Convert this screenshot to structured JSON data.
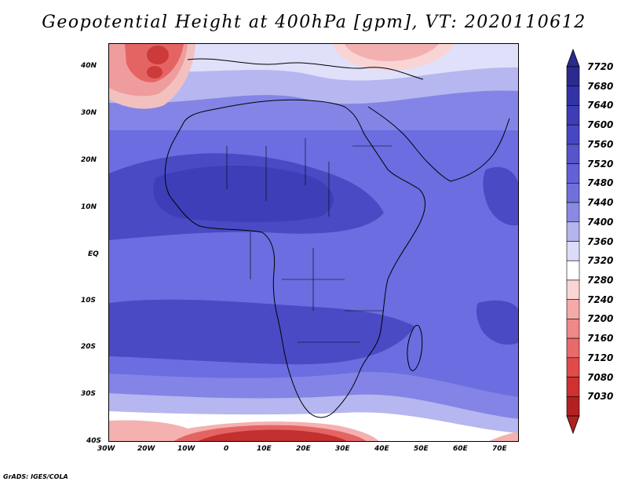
{
  "title": "Geopotential Height at 400hPa [gpm], VT: 2020110612",
  "credit": "GrADS: IGES/COLA",
  "axes": {
    "lat_labels": [
      "40N",
      "30N",
      "20N",
      "10N",
      "EQ",
      "10S",
      "20S",
      "30S",
      "40S"
    ],
    "lon_labels": [
      "30W",
      "20W",
      "10W",
      "0",
      "10E",
      "20E",
      "30E",
      "40E",
      "50E",
      "60E",
      "70E"
    ]
  },
  "colorbar": {
    "labels": [
      "7720",
      "7680",
      "7640",
      "7600",
      "7560",
      "7520",
      "7480",
      "7440",
      "7400",
      "7360",
      "7320",
      "7280",
      "7240",
      "7200",
      "7160",
      "7120",
      "7080",
      "7030"
    ],
    "colors": [
      "#2b2a8e",
      "#3333a8",
      "#3d3db8",
      "#4747c4",
      "#5555cc",
      "#6262d6",
      "#7070dc",
      "#8a8ae4",
      "#b4b4ee",
      "#dcdcf8",
      "#ffffff",
      "#fbd4d4",
      "#f5aaaa",
      "#ef8888",
      "#e86a6a",
      "#e04a4a",
      "#cf3030",
      "#b32020"
    ]
  },
  "map": {
    "field": "Geopotential Height",
    "level": "400hPa",
    "units": "gpm",
    "valid_time": "2020110612"
  }
}
